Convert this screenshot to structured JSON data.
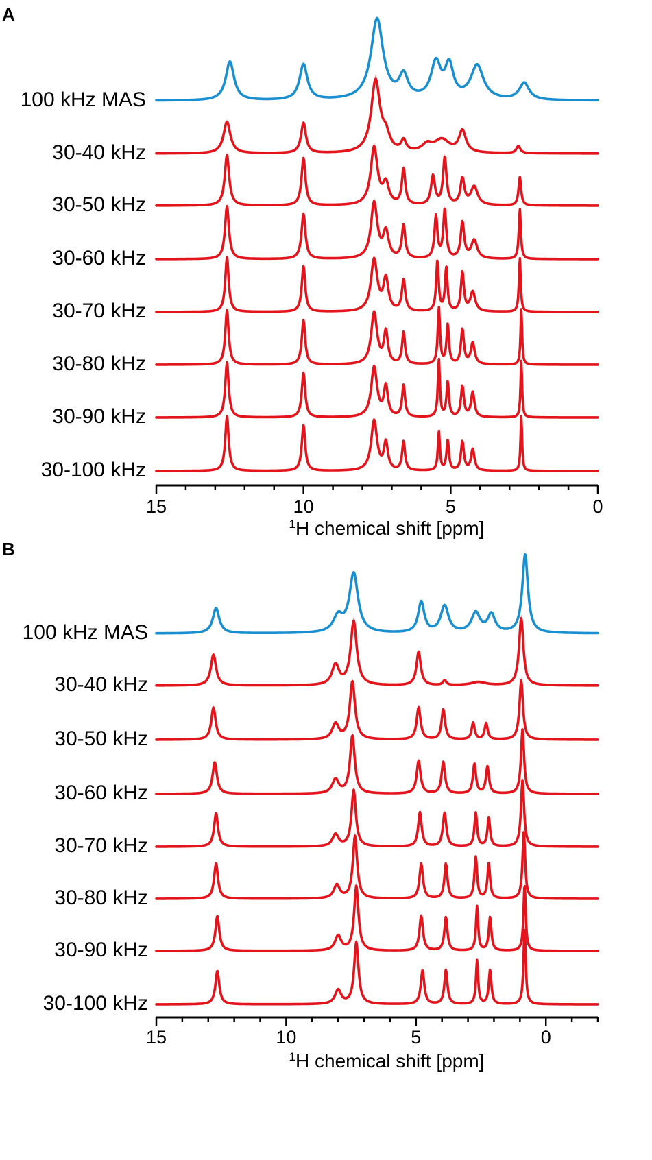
{
  "chart_data": [
    {
      "panel": "A",
      "type": "line",
      "xlabel": "1H chemical shift [ppm]",
      "xlabel_parts": {
        "sup": "1",
        "text": "H chemical shift [ppm]"
      },
      "xlim": [
        15,
        0
      ],
      "x_reversed": true,
      "x_ticks": [
        15,
        10,
        5,
        0
      ],
      "colors": {
        "reference": "#1a8fd0",
        "prediction": "#e3141c",
        "band": "#e8a0a0"
      },
      "series": [
        {
          "name": "100 kHz MAS",
          "color": "#1a8fd0",
          "height": 1.0,
          "peaks": [
            [
              12.5,
              0.48,
              0.17
            ],
            [
              10.0,
              0.44,
              0.16
            ],
            [
              7.5,
              1.0,
              0.25
            ],
            [
              6.6,
              0.28,
              0.18
            ],
            [
              5.5,
              0.44,
              0.2
            ],
            [
              5.05,
              0.4,
              0.17
            ],
            [
              4.1,
              0.42,
              0.26
            ],
            [
              2.5,
              0.21,
              0.2
            ]
          ]
        },
        {
          "name": "30-40 kHz",
          "color": "#e3141c",
          "height": 1.0,
          "peaks": [
            [
              12.6,
              0.44,
              0.14
            ],
            [
              10.0,
              0.42,
              0.1
            ],
            [
              7.55,
              1.0,
              0.18
            ],
            [
              7.2,
              0.2,
              0.15
            ],
            [
              6.6,
              0.15,
              0.1
            ],
            [
              5.8,
              0.1,
              0.2
            ],
            [
              5.3,
              0.18,
              0.32
            ],
            [
              4.6,
              0.3,
              0.14
            ],
            [
              2.7,
              0.1,
              0.08
            ]
          ]
        },
        {
          "name": "30-50 kHz",
          "color": "#e3141c",
          "height": 0.8,
          "peaks": [
            [
              12.6,
              0.88,
              0.09
            ],
            [
              10.0,
              0.82,
              0.08
            ],
            [
              7.6,
              1.0,
              0.14
            ],
            [
              7.2,
              0.35,
              0.12
            ],
            [
              6.6,
              0.62,
              0.07
            ],
            [
              5.6,
              0.5,
              0.08
            ],
            [
              5.2,
              0.82,
              0.07
            ],
            [
              4.6,
              0.45,
              0.08
            ],
            [
              4.2,
              0.32,
              0.14
            ],
            [
              2.65,
              0.5,
              0.05
            ]
          ]
        },
        {
          "name": "30-60 kHz",
          "color": "#e3141c",
          "height": 0.8,
          "peaks": [
            [
              12.6,
              0.92,
              0.08
            ],
            [
              10.0,
              0.78,
              0.08
            ],
            [
              7.6,
              0.97,
              0.13
            ],
            [
              7.2,
              0.45,
              0.11
            ],
            [
              6.6,
              0.57,
              0.07
            ],
            [
              5.5,
              0.73,
              0.06
            ],
            [
              5.2,
              0.84,
              0.06
            ],
            [
              4.6,
              0.62,
              0.07
            ],
            [
              4.2,
              0.32,
              0.12
            ],
            [
              2.65,
              0.87,
              0.04
            ]
          ]
        },
        {
          "name": "30-70 kHz",
          "color": "#e3141c",
          "height": 0.8,
          "peaks": [
            [
              12.6,
              0.95,
              0.07
            ],
            [
              10.0,
              0.79,
              0.07
            ],
            [
              7.6,
              0.9,
              0.13
            ],
            [
              7.2,
              0.55,
              0.1
            ],
            [
              6.6,
              0.54,
              0.07
            ],
            [
              5.45,
              0.88,
              0.05
            ],
            [
              5.15,
              0.75,
              0.05
            ],
            [
              4.6,
              0.67,
              0.06
            ],
            [
              4.25,
              0.34,
              0.1
            ],
            [
              2.65,
              0.94,
              0.035
            ]
          ]
        },
        {
          "name": "30-80 kHz",
          "color": "#e3141c",
          "height": 0.8,
          "peaks": [
            [
              12.6,
              0.95,
              0.07
            ],
            [
              10.0,
              0.77,
              0.07
            ],
            [
              7.6,
              0.9,
              0.12
            ],
            [
              7.2,
              0.55,
              0.08
            ],
            [
              6.6,
              0.55,
              0.06
            ],
            [
              5.4,
              0.98,
              0.045
            ],
            [
              5.1,
              0.68,
              0.05
            ],
            [
              4.6,
              0.6,
              0.06
            ],
            [
              4.25,
              0.37,
              0.08
            ],
            [
              2.6,
              0.98,
              0.03
            ]
          ]
        },
        {
          "name": "30-90 kHz",
          "color": "#e3141c",
          "height": 0.8,
          "peaks": [
            [
              12.6,
              0.96,
              0.07
            ],
            [
              10.0,
              0.77,
              0.07
            ],
            [
              7.6,
              0.87,
              0.12
            ],
            [
              7.2,
              0.52,
              0.08
            ],
            [
              6.6,
              0.55,
              0.06
            ],
            [
              5.4,
              1.0,
              0.04
            ],
            [
              5.1,
              0.6,
              0.05
            ],
            [
              4.6,
              0.53,
              0.06
            ],
            [
              4.25,
              0.43,
              0.07
            ],
            [
              2.6,
              1.0,
              0.03
            ]
          ]
        },
        {
          "name": "30-100 kHz",
          "color": "#e3141c",
          "height": 0.8,
          "peaks": [
            [
              12.6,
              0.95,
              0.07
            ],
            [
              10.0,
              0.79,
              0.07
            ],
            [
              7.6,
              0.87,
              0.12
            ],
            [
              7.2,
              0.47,
              0.08
            ],
            [
              6.6,
              0.5,
              0.06
            ],
            [
              5.4,
              0.68,
              0.04
            ],
            [
              5.1,
              0.52,
              0.05
            ],
            [
              4.6,
              0.5,
              0.06
            ],
            [
              4.25,
              0.37,
              0.07
            ],
            [
              2.6,
              0.97,
              0.03
            ]
          ]
        }
      ]
    },
    {
      "panel": "B",
      "type": "line",
      "xlabel": "1H chemical shift [ppm]",
      "xlabel_parts": {
        "sup": "1",
        "text": "H chemical shift [ppm]"
      },
      "xlim": [
        15,
        -2
      ],
      "x_reversed": true,
      "x_ticks": [
        15,
        10,
        5,
        0
      ],
      "colors": {
        "reference": "#1a8fd0",
        "prediction": "#e3141c",
        "band": "#e8a0a0"
      },
      "series": [
        {
          "name": "100 kHz MAS",
          "color": "#1a8fd0",
          "height": 1.0,
          "peaks": [
            [
              12.7,
              0.32,
              0.15
            ],
            [
              8.0,
              0.2,
              0.22
            ],
            [
              7.4,
              0.75,
              0.2
            ],
            [
              4.8,
              0.39,
              0.14
            ],
            [
              3.9,
              0.34,
              0.18
            ],
            [
              2.7,
              0.25,
              0.2
            ],
            [
              2.1,
              0.23,
              0.17
            ],
            [
              0.8,
              1.0,
              0.13
            ]
          ]
        },
        {
          "name": "30-40 kHz",
          "color": "#e3141c",
          "height": 1.0,
          "peaks": [
            [
              12.8,
              0.46,
              0.12
            ],
            [
              8.1,
              0.3,
              0.16
            ],
            [
              7.4,
              0.95,
              0.14
            ],
            [
              4.9,
              0.5,
              0.1
            ],
            [
              3.9,
              0.07,
              0.08
            ],
            [
              2.6,
              0.05,
              0.35
            ],
            [
              0.95,
              1.0,
              0.1
            ]
          ]
        },
        {
          "name": "30-50 kHz",
          "color": "#e3141c",
          "height": 1.0,
          "peaks": [
            [
              12.8,
              0.48,
              0.1
            ],
            [
              8.1,
              0.23,
              0.15
            ],
            [
              7.45,
              0.86,
              0.12
            ],
            [
              4.9,
              0.48,
              0.09
            ],
            [
              3.95,
              0.45,
              0.08
            ],
            [
              2.8,
              0.25,
              0.07
            ],
            [
              2.3,
              0.24,
              0.07
            ],
            [
              0.95,
              0.88,
              0.08
            ]
          ]
        },
        {
          "name": "30-60 kHz",
          "color": "#e3141c",
          "height": 1.0,
          "peaks": [
            [
              12.75,
              0.47,
              0.1
            ],
            [
              8.1,
              0.21,
              0.15
            ],
            [
              7.45,
              0.86,
              0.11
            ],
            [
              4.9,
              0.49,
              0.09
            ],
            [
              3.95,
              0.47,
              0.08
            ],
            [
              2.75,
              0.44,
              0.07
            ],
            [
              2.25,
              0.4,
              0.07
            ],
            [
              0.9,
              0.96,
              0.07
            ]
          ]
        },
        {
          "name": "30-70 kHz",
          "color": "#e3141c",
          "height": 1.0,
          "peaks": [
            [
              12.7,
              0.5,
              0.09
            ],
            [
              8.1,
              0.18,
              0.14
            ],
            [
              7.4,
              0.84,
              0.1
            ],
            [
              4.85,
              0.51,
              0.08
            ],
            [
              3.9,
              0.5,
              0.08
            ],
            [
              2.7,
              0.5,
              0.06
            ],
            [
              2.2,
              0.43,
              0.06
            ],
            [
              0.9,
              0.99,
              0.07
            ]
          ]
        },
        {
          "name": "30-80 kHz",
          "color": "#e3141c",
          "height": 1.0,
          "peaks": [
            [
              12.7,
              0.53,
              0.09
            ],
            [
              8.05,
              0.2,
              0.14
            ],
            [
              7.35,
              0.93,
              0.1
            ],
            [
              4.8,
              0.52,
              0.08
            ],
            [
              3.85,
              0.52,
              0.07
            ],
            [
              2.7,
              0.62,
              0.06
            ],
            [
              2.2,
              0.52,
              0.06
            ],
            [
              0.85,
              1.0,
              0.06
            ]
          ]
        },
        {
          "name": "30-90 kHz",
          "color": "#e3141c",
          "height": 1.0,
          "peaks": [
            [
              12.65,
              0.52,
              0.09
            ],
            [
              8.0,
              0.22,
              0.14
            ],
            [
              7.3,
              0.96,
              0.1
            ],
            [
              4.8,
              0.52,
              0.08
            ],
            [
              3.85,
              0.5,
              0.07
            ],
            [
              2.65,
              0.66,
              0.05
            ],
            [
              2.15,
              0.5,
              0.06
            ],
            [
              0.82,
              1.0,
              0.05
            ]
          ]
        },
        {
          "name": "30-100 kHz",
          "color": "#e3141c",
          "height": 1.0,
          "peaks": [
            [
              12.65,
              0.5,
              0.09
            ],
            [
              8.0,
              0.21,
              0.14
            ],
            [
              7.3,
              0.92,
              0.1
            ],
            [
              4.75,
              0.5,
              0.08
            ],
            [
              3.85,
              0.51,
              0.07
            ],
            [
              2.65,
              0.65,
              0.05
            ],
            [
              2.15,
              0.51,
              0.06
            ],
            [
              0.82,
              1.15,
              0.05
            ]
          ]
        }
      ]
    }
  ]
}
